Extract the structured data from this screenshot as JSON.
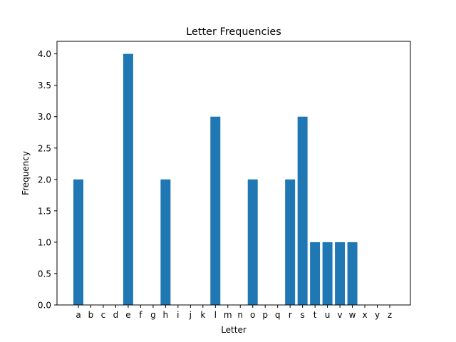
{
  "chart_data": {
    "type": "bar",
    "title": "Letter Frequencies",
    "xlabel": "Letter",
    "ylabel": "Frequency",
    "categories": [
      "a",
      "b",
      "c",
      "d",
      "e",
      "f",
      "g",
      "h",
      "i",
      "j",
      "k",
      "l",
      "m",
      "n",
      "o",
      "p",
      "q",
      "r",
      "s",
      "t",
      "u",
      "v",
      "w",
      "x",
      "y",
      "z"
    ],
    "values": [
      2,
      0,
      0,
      0,
      4,
      0,
      0,
      2,
      0,
      0,
      0,
      3,
      0,
      0,
      2,
      0,
      0,
      2,
      3,
      1,
      1,
      1,
      1,
      0,
      0,
      0
    ],
    "ylim": [
      0,
      4.2
    ],
    "yticks": [
      0.0,
      0.5,
      1.0,
      1.5,
      2.0,
      2.5,
      3.0,
      3.5,
      4.0
    ],
    "ytick_labels": [
      "0.0",
      "0.5",
      "1.0",
      "1.5",
      "2.0",
      "2.5",
      "3.0",
      "3.5",
      "4.0"
    ],
    "bar_color": "#1f77b4",
    "grid": false,
    "legend": "none"
  }
}
